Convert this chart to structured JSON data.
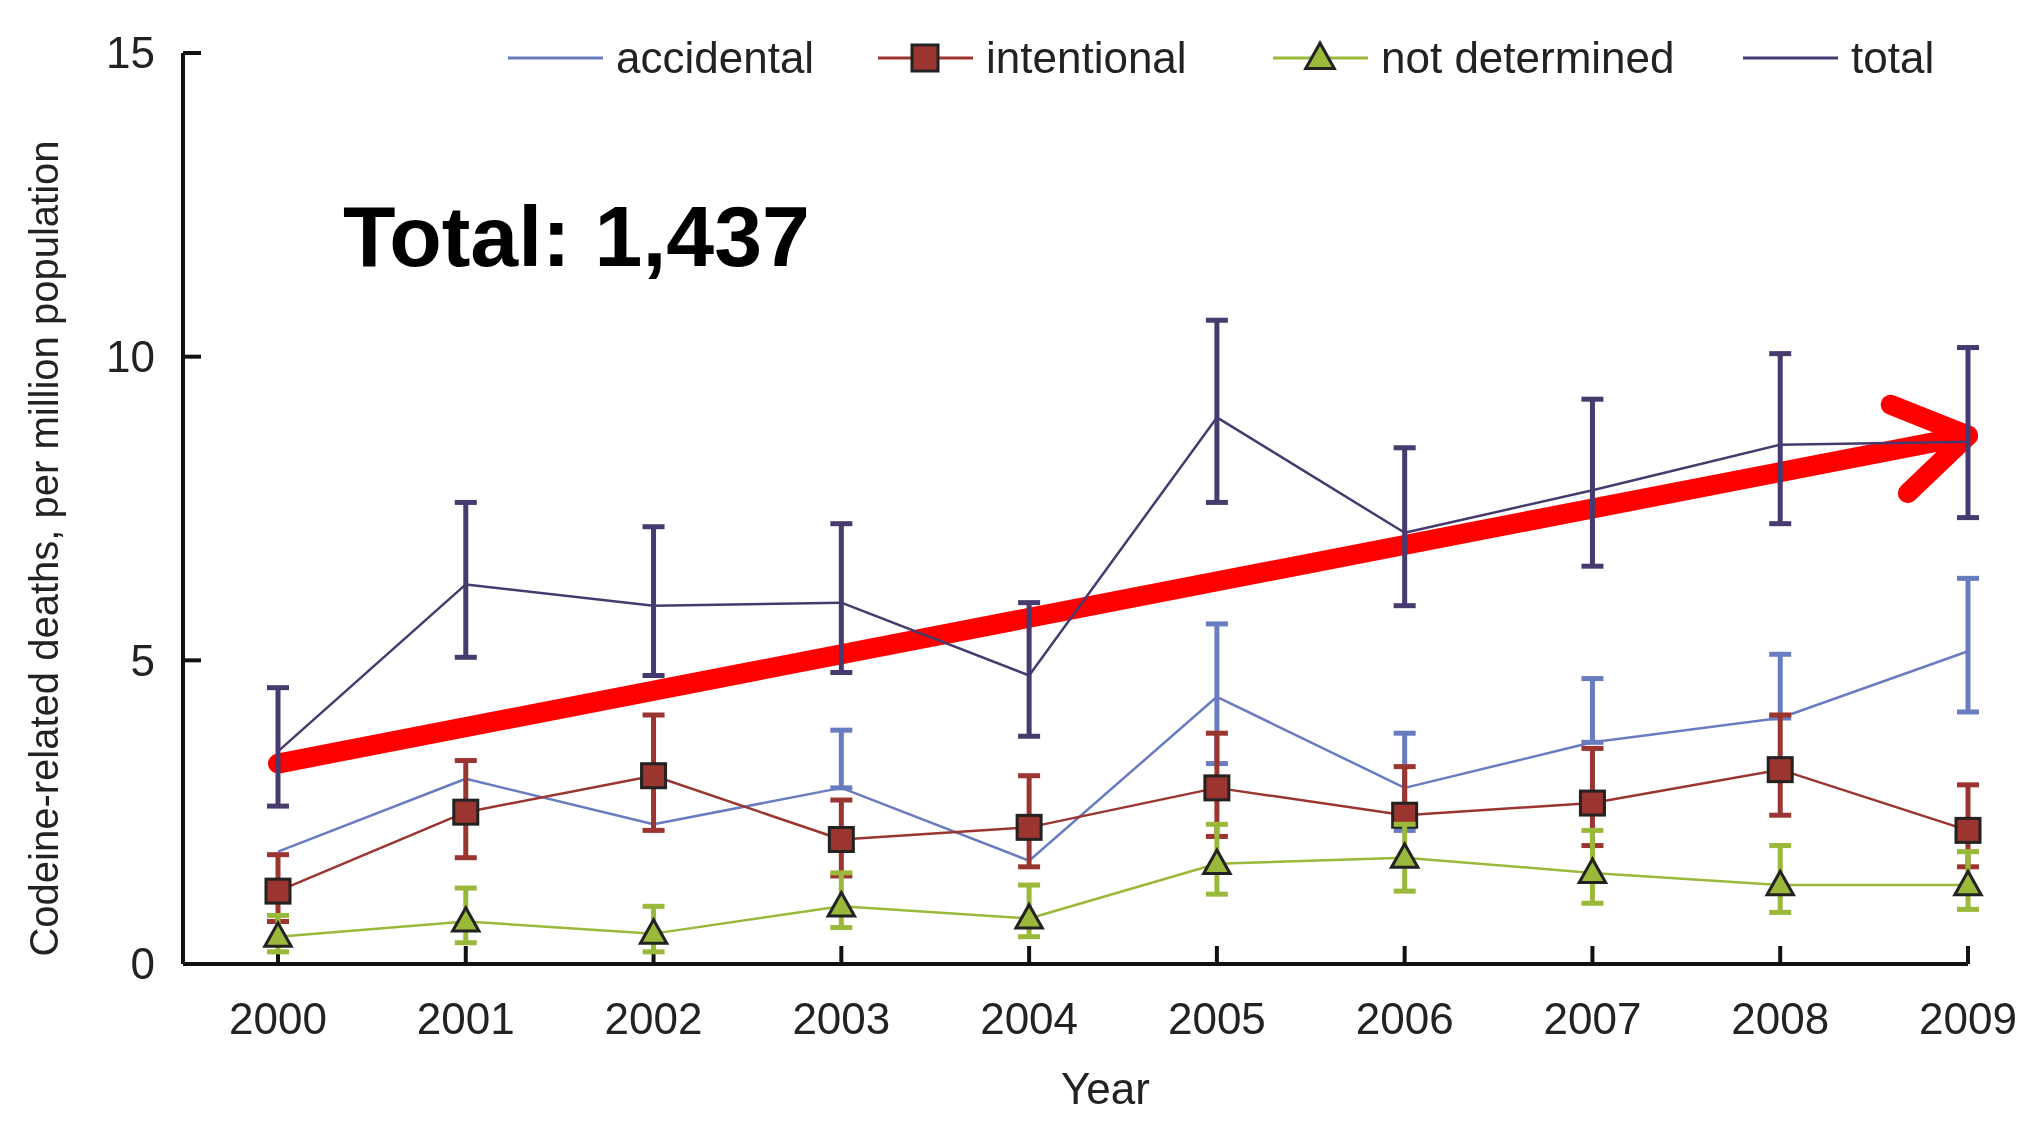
{
  "chart_data": {
    "type": "line",
    "xlabel": "Year",
    "ylabel": "Codeine-related deaths, per million population",
    "categories": [
      "2000",
      "2001",
      "2002",
      "2003",
      "2004",
      "2005",
      "2006",
      "2007",
      "2008",
      "2009"
    ],
    "ylim": [
      0,
      15
    ],
    "yticks": [
      0,
      5,
      10,
      15
    ],
    "grid": false,
    "legend": "top right",
    "line_style": "solid",
    "annotations": [
      "Total: 1,437"
    ],
    "series": [
      {
        "name": "accidental",
        "color": "#6a7cc0",
        "marker": "none",
        "values": [
          1.85,
          3.05,
          2.3,
          2.9,
          1.7,
          4.4,
          2.9,
          3.65,
          4.05,
          5.15
        ],
        "errors": [
          null,
          null,
          null,
          [
            2.9,
            3.85
          ],
          null,
          [
            3.3,
            5.6
          ],
          [
            2.2,
            3.8
          ],
          [
            3.65,
            4.7
          ],
          [
            4.05,
            5.1
          ],
          [
            4.15,
            6.35
          ]
        ]
      },
      {
        "name": "intentional",
        "color": "#9a3530",
        "marker": "square",
        "values": [
          1.2,
          2.5,
          3.1,
          2.05,
          2.25,
          2.9,
          2.45,
          2.65,
          3.2,
          2.2
        ],
        "errors": [
          [
            0.7,
            1.8
          ],
          [
            1.75,
            3.35
          ],
          [
            2.2,
            4.1
          ],
          [
            1.45,
            2.7
          ],
          [
            1.6,
            3.1
          ],
          [
            2.1,
            3.8
          ],
          [
            2.45,
            3.25
          ],
          [
            1.95,
            3.55
          ],
          [
            2.45,
            4.1
          ],
          [
            1.6,
            2.95
          ]
        ]
      },
      {
        "name": "not determined",
        "color": "#9ab83a",
        "marker": "triangle",
        "values": [
          0.45,
          0.7,
          0.5,
          0.95,
          0.75,
          1.65,
          1.75,
          1.5,
          1.3,
          1.3
        ],
        "errors": [
          [
            0.2,
            0.8
          ],
          [
            0.35,
            1.25
          ],
          [
            0.2,
            0.95
          ],
          [
            0.6,
            1.5
          ],
          [
            0.45,
            1.3
          ],
          [
            1.15,
            2.3
          ],
          [
            1.2,
            2.3
          ],
          [
            1.0,
            2.2
          ],
          [
            0.85,
            1.95
          ],
          [
            0.9,
            1.85
          ]
        ]
      },
      {
        "type": "line",
        "color": "#ff0000",
        "marker": "none",
        "values": [
          3.3,
          null,
          null,
          null,
          null,
          null,
          null,
          null,
          null,
          8.7
        ]
      },
      {
        "name": "total",
        "color": "#463a6e",
        "marker": "none",
        "values": [
          3.5,
          6.25,
          5.9,
          5.95,
          4.75,
          9.0,
          7.1,
          7.8,
          8.55,
          8.6
        ],
        "errors": [
          [
            2.6,
            4.55
          ],
          [
            5.05,
            7.6
          ],
          [
            4.75,
            7.2
          ],
          [
            4.8,
            7.25
          ],
          [
            3.75,
            5.95
          ],
          [
            7.6,
            10.6
          ],
          [
            5.9,
            8.5
          ],
          [
            6.55,
            9.3
          ],
          [
            7.25,
            10.05
          ],
          [
            7.35,
            10.15
          ]
        ]
      }
    ]
  }
}
